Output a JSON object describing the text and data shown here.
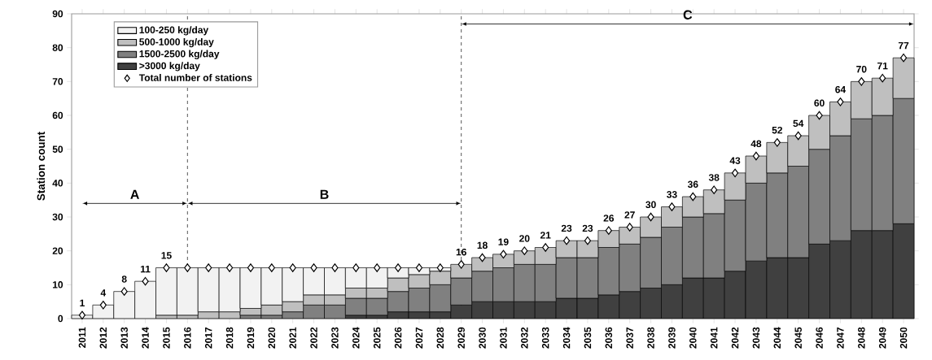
{
  "chart_data": {
    "type": "bar",
    "stacked": true,
    "ylabel": "Station count",
    "categories": [
      "2011",
      "2012",
      "2013",
      "2014",
      "2015",
      "2016",
      "2017",
      "2018",
      "2019",
      "2020",
      "2021",
      "2022",
      "2023",
      "2024",
      "2025",
      "2026",
      "2027",
      "2028",
      "2029",
      "2030",
      "2031",
      "2032",
      "2033",
      "2034",
      "2035",
      "2036",
      "2037",
      "2038",
      "2039",
      "2040",
      "2041",
      "2042",
      "2043",
      "2044",
      "2045",
      "2046",
      "2047",
      "2048",
      "2049",
      "2050"
    ],
    "series": [
      {
        "name": ">3000 kg/day",
        "color": "#404040",
        "values": [
          0,
          0,
          0,
          0,
          0,
          0,
          0,
          0,
          0,
          0,
          0,
          0,
          0,
          1,
          1,
          2,
          2,
          2,
          4,
          5,
          5,
          5,
          5,
          6,
          6,
          7,
          8,
          9,
          10,
          12,
          12,
          14,
          17,
          18,
          18,
          22,
          23,
          26,
          26,
          28
        ]
      },
      {
        "name": "1500-2500 kg/day",
        "color": "#808080",
        "values": [
          0,
          0,
          0,
          0,
          0,
          0,
          0,
          0,
          1,
          1,
          2,
          4,
          4,
          5,
          5,
          6,
          7,
          8,
          8,
          9,
          10,
          11,
          11,
          12,
          12,
          14,
          14,
          15,
          17,
          18,
          19,
          21,
          23,
          25,
          27,
          28,
          31,
          33,
          34,
          37
        ]
      },
      {
        "name": "500-1000 kg/day",
        "color": "#bfbfbf",
        "values": [
          0,
          0,
          0,
          0,
          1,
          1,
          2,
          2,
          2,
          3,
          3,
          3,
          3,
          3,
          3,
          4,
          4,
          4,
          4,
          4,
          4,
          4,
          5,
          5,
          5,
          5,
          5,
          6,
          6,
          6,
          7,
          8,
          8,
          9,
          9,
          10,
          10,
          11,
          11,
          12
        ]
      },
      {
        "name": "100-250 kg/day",
        "color": "#f2f2f2",
        "values": [
          1,
          4,
          8,
          11,
          14,
          14,
          13,
          13,
          12,
          11,
          10,
          8,
          8,
          6,
          6,
          3,
          2,
          1,
          0,
          0,
          0,
          0,
          0,
          0,
          0,
          0,
          0,
          0,
          0,
          0,
          0,
          0,
          0,
          0,
          0,
          0,
          0,
          0,
          0,
          0
        ]
      },
      {
        "name": "Total number of stations",
        "type": "scatter",
        "color": "#ffffff",
        "marker": "diamond",
        "values": [
          1,
          4,
          8,
          11,
          15,
          15,
          15,
          15,
          15,
          15,
          15,
          15,
          15,
          15,
          15,
          15,
          15,
          15,
          16,
          18,
          19,
          20,
          21,
          23,
          23,
          26,
          27,
          30,
          33,
          36,
          38,
          43,
          48,
          52,
          54,
          60,
          64,
          70,
          71,
          77
        ],
        "value_labels": [
          "1",
          "4",
          "8",
          "11",
          "15",
          null,
          null,
          null,
          null,
          null,
          null,
          null,
          null,
          null,
          null,
          null,
          null,
          null,
          "16",
          "18",
          "19",
          "20",
          "21",
          "23",
          "23",
          "26",
          "27",
          "30",
          "33",
          "36",
          "38",
          "43",
          "48",
          "52",
          "54",
          "60",
          "64",
          "70",
          "71",
          "77"
        ]
      }
    ],
    "ylim": [
      0,
      90
    ],
    "yticks": [
      0,
      10,
      20,
      30,
      40,
      50,
      60,
      70,
      80,
      90
    ],
    "grid": false,
    "legend": "top left",
    "ref_lines": [
      {
        "axis": "x",
        "value": "2016",
        "line_style": "dashed"
      },
      {
        "axis": "x",
        "value": "2029",
        "line_style": "dashed"
      }
    ],
    "annotations": [
      "A",
      "B",
      "C"
    ]
  }
}
